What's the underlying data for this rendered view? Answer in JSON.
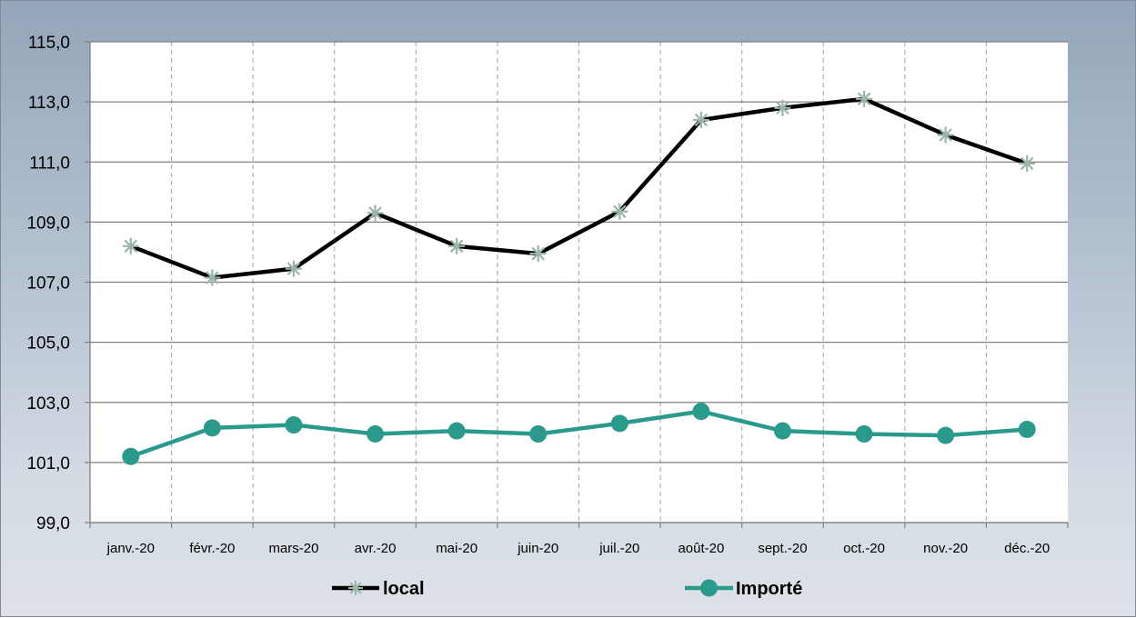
{
  "colors": {
    "local_line": "#000000",
    "local_marker": "#9bb5a8",
    "importe_line": "#2a9a8c",
    "importe_marker": "#2a9a8c",
    "plot_bg": "#ffffff",
    "h_grid": "#808080",
    "v_grid": "#b0b0b0"
  },
  "chart_data": {
    "type": "line",
    "title": "",
    "xlabel": "",
    "ylabel": "",
    "ylim": [
      99.0,
      115.0
    ],
    "yticks": [
      "99,0",
      "101,0",
      "103,0",
      "105,0",
      "107,0",
      "109,0",
      "111,0",
      "113,0",
      "115,0"
    ],
    "categories": [
      "janv.-20",
      "févr.-20",
      "mars-20",
      "avr.-20",
      "mai-20",
      "juin-20",
      "juil.-20",
      "août-20",
      "sept.-20",
      "oct.-20",
      "nov.-20",
      "déc.-20"
    ],
    "grid": "horizontal solid, vertical dashed",
    "legend_position": "bottom",
    "series": [
      {
        "name": "local",
        "marker": "asterisk",
        "values": [
          108.2,
          107.15,
          107.45,
          109.3,
          108.2,
          107.95,
          109.35,
          112.4,
          112.8,
          113.1,
          111.9,
          110.95
        ]
      },
      {
        "name": "Importé",
        "marker": "circle",
        "values": [
          101.2,
          102.15,
          102.25,
          101.95,
          102.05,
          101.95,
          102.3,
          102.7,
          102.05,
          101.95,
          101.9,
          102.1
        ]
      }
    ]
  }
}
